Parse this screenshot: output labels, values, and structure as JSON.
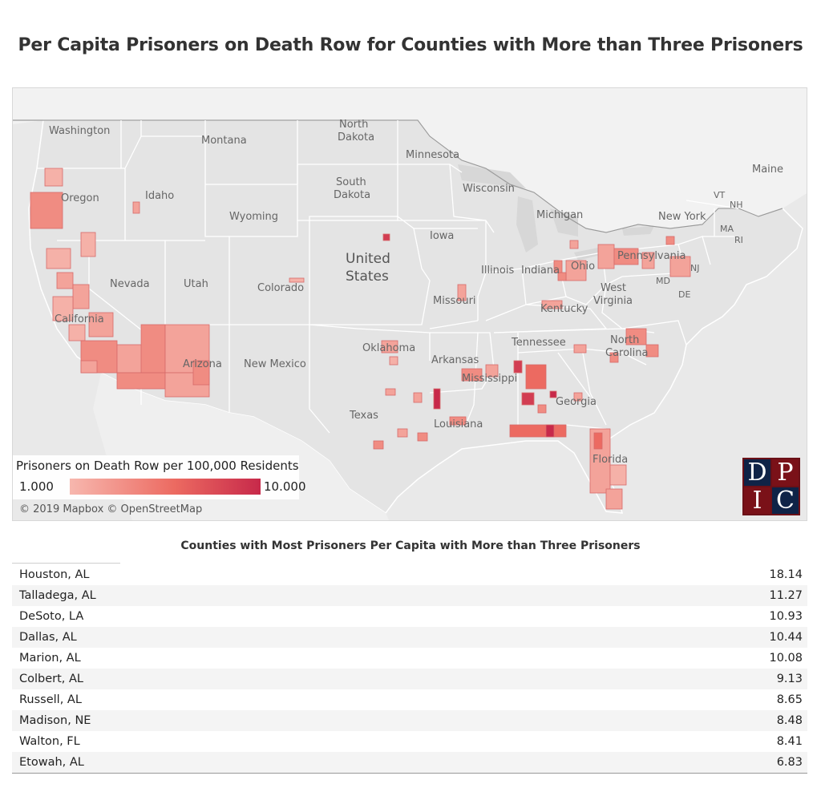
{
  "title": "Per Capita Prisoners on Death Row for Counties with More than Three Prisoners",
  "map": {
    "state_labels": [
      {
        "name": "Washington",
        "key": "washington"
      },
      {
        "name": "Montana",
        "key": "montana"
      },
      {
        "name": "North",
        "key": "north-dakota-1"
      },
      {
        "name": "Dakota",
        "key": "north-dakota-2"
      },
      {
        "name": "Minnesota",
        "key": "minnesota"
      },
      {
        "name": "Maine",
        "key": "maine"
      },
      {
        "name": "Oregon",
        "key": "oregon"
      },
      {
        "name": "Idaho",
        "key": "idaho"
      },
      {
        "name": "South",
        "key": "south-dakota-1"
      },
      {
        "name": "Dakota",
        "key": "south-dakota-2"
      },
      {
        "name": "Wisconsin",
        "key": "wisconsin"
      },
      {
        "name": "VT",
        "key": "vermont"
      },
      {
        "name": "NH",
        "key": "new-hampshire"
      },
      {
        "name": "Wyoming",
        "key": "wyoming"
      },
      {
        "name": "Michigan",
        "key": "michigan"
      },
      {
        "name": "New York",
        "key": "new-york"
      },
      {
        "name": "Iowa",
        "key": "iowa"
      },
      {
        "name": "MA",
        "key": "massachusetts"
      },
      {
        "name": "RI",
        "key": "rhode-island"
      },
      {
        "name": "Nevada",
        "key": "nevada"
      },
      {
        "name": "Utah",
        "key": "utah"
      },
      {
        "name": "Colorado",
        "key": "colorado"
      },
      {
        "name": "Illinois",
        "key": "illinois"
      },
      {
        "name": "Indiana",
        "key": "indiana"
      },
      {
        "name": "Ohio",
        "key": "ohio"
      },
      {
        "name": "Pennsylvania",
        "key": "pennsylvania"
      },
      {
        "name": "NJ",
        "key": "new-jersey"
      },
      {
        "name": "MD",
        "key": "maryland"
      },
      {
        "name": "DE",
        "key": "delaware"
      },
      {
        "name": "California",
        "key": "california"
      },
      {
        "name": "Missouri",
        "key": "missouri"
      },
      {
        "name": "West",
        "key": "west-virginia-1"
      },
      {
        "name": "Virginia",
        "key": "west-virginia-2"
      },
      {
        "name": "Kentucky",
        "key": "kentucky"
      },
      {
        "name": "Oklahoma",
        "key": "oklahoma"
      },
      {
        "name": "Arkansas",
        "key": "arkansas"
      },
      {
        "name": "Tennessee",
        "key": "tennessee"
      },
      {
        "name": "North",
        "key": "north-carolina-1"
      },
      {
        "name": "Carolina",
        "key": "north-carolina-2"
      },
      {
        "name": "Arizona",
        "key": "arizona"
      },
      {
        "name": "New Mexico",
        "key": "new-mexico"
      },
      {
        "name": "Mississippi",
        "key": "mississippi"
      },
      {
        "name": "Georgia",
        "key": "georgia"
      },
      {
        "name": "Texas",
        "key": "texas"
      },
      {
        "name": "Louisiana",
        "key": "louisiana"
      },
      {
        "name": "Florida",
        "key": "florida"
      }
    ],
    "country_label_line1": "United",
    "country_label_line2": "States",
    "attribution": "© 2019 Mapbox © OpenStreetMap",
    "legend": {
      "title": "Prisoners on Death Row per 100,000 Residents",
      "min_label": "1.000",
      "max_label": "10.000",
      "min_color": "#f7b7ae",
      "mid_color": "#ec6a61",
      "max_color": "#c7294a"
    },
    "logo_letters": [
      "D",
      "P",
      "I",
      "C"
    ]
  },
  "table": {
    "title": "Counties with Most Prisoners Per Capita with More than Three Prisoners",
    "rows": [
      {
        "county": "Houston, AL",
        "value": "18.14"
      },
      {
        "county": "Talladega, AL",
        "value": "11.27"
      },
      {
        "county": "DeSoto, LA",
        "value": "10.93"
      },
      {
        "county": "Dallas, AL",
        "value": "10.44"
      },
      {
        "county": "Marion, AL",
        "value": "10.08"
      },
      {
        "county": "Colbert, AL",
        "value": "9.13"
      },
      {
        "county": "Russell, AL",
        "value": "8.65"
      },
      {
        "county": "Madison, NE",
        "value": "8.48"
      },
      {
        "county": "Walton, FL",
        "value": "8.41"
      },
      {
        "county": "Etowah, AL",
        "value": "6.83"
      }
    ]
  }
}
